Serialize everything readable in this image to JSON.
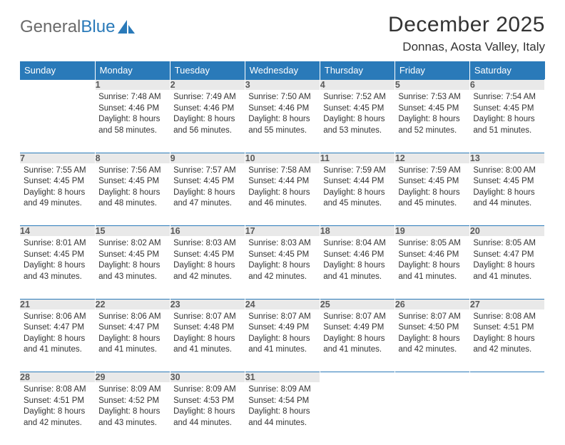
{
  "brand": {
    "part1": "General",
    "part2": "Blue"
  },
  "title": "December 2025",
  "location": "Donnas, Aosta Valley, Italy",
  "colors": {
    "header_bg": "#2a7ab9",
    "header_text": "#ffffff",
    "daynum_bg": "#e9e9e9",
    "daynum_text": "#5a5a5a",
    "body_text": "#333333",
    "rule": "#2a7ab9",
    "logo_gray": "#6a6a6a",
    "logo_blue": "#2a7ab9"
  },
  "columns": [
    "Sunday",
    "Monday",
    "Tuesday",
    "Wednesday",
    "Thursday",
    "Friday",
    "Saturday"
  ],
  "weeks": [
    [
      null,
      {
        "n": "1",
        "sr": "7:48 AM",
        "ss": "4:46 PM",
        "dl": "8 hours and 58 minutes."
      },
      {
        "n": "2",
        "sr": "7:49 AM",
        "ss": "4:46 PM",
        "dl": "8 hours and 56 minutes."
      },
      {
        "n": "3",
        "sr": "7:50 AM",
        "ss": "4:46 PM",
        "dl": "8 hours and 55 minutes."
      },
      {
        "n": "4",
        "sr": "7:52 AM",
        "ss": "4:45 PM",
        "dl": "8 hours and 53 minutes."
      },
      {
        "n": "5",
        "sr": "7:53 AM",
        "ss": "4:45 PM",
        "dl": "8 hours and 52 minutes."
      },
      {
        "n": "6",
        "sr": "7:54 AM",
        "ss": "4:45 PM",
        "dl": "8 hours and 51 minutes."
      }
    ],
    [
      {
        "n": "7",
        "sr": "7:55 AM",
        "ss": "4:45 PM",
        "dl": "8 hours and 49 minutes."
      },
      {
        "n": "8",
        "sr": "7:56 AM",
        "ss": "4:45 PM",
        "dl": "8 hours and 48 minutes."
      },
      {
        "n": "9",
        "sr": "7:57 AM",
        "ss": "4:45 PM",
        "dl": "8 hours and 47 minutes."
      },
      {
        "n": "10",
        "sr": "7:58 AM",
        "ss": "4:44 PM",
        "dl": "8 hours and 46 minutes."
      },
      {
        "n": "11",
        "sr": "7:59 AM",
        "ss": "4:44 PM",
        "dl": "8 hours and 45 minutes."
      },
      {
        "n": "12",
        "sr": "7:59 AM",
        "ss": "4:45 PM",
        "dl": "8 hours and 45 minutes."
      },
      {
        "n": "13",
        "sr": "8:00 AM",
        "ss": "4:45 PM",
        "dl": "8 hours and 44 minutes."
      }
    ],
    [
      {
        "n": "14",
        "sr": "8:01 AM",
        "ss": "4:45 PM",
        "dl": "8 hours and 43 minutes."
      },
      {
        "n": "15",
        "sr": "8:02 AM",
        "ss": "4:45 PM",
        "dl": "8 hours and 43 minutes."
      },
      {
        "n": "16",
        "sr": "8:03 AM",
        "ss": "4:45 PM",
        "dl": "8 hours and 42 minutes."
      },
      {
        "n": "17",
        "sr": "8:03 AM",
        "ss": "4:45 PM",
        "dl": "8 hours and 42 minutes."
      },
      {
        "n": "18",
        "sr": "8:04 AM",
        "ss": "4:46 PM",
        "dl": "8 hours and 41 minutes."
      },
      {
        "n": "19",
        "sr": "8:05 AM",
        "ss": "4:46 PM",
        "dl": "8 hours and 41 minutes."
      },
      {
        "n": "20",
        "sr": "8:05 AM",
        "ss": "4:47 PM",
        "dl": "8 hours and 41 minutes."
      }
    ],
    [
      {
        "n": "21",
        "sr": "8:06 AM",
        "ss": "4:47 PM",
        "dl": "8 hours and 41 minutes."
      },
      {
        "n": "22",
        "sr": "8:06 AM",
        "ss": "4:47 PM",
        "dl": "8 hours and 41 minutes."
      },
      {
        "n": "23",
        "sr": "8:07 AM",
        "ss": "4:48 PM",
        "dl": "8 hours and 41 minutes."
      },
      {
        "n": "24",
        "sr": "8:07 AM",
        "ss": "4:49 PM",
        "dl": "8 hours and 41 minutes."
      },
      {
        "n": "25",
        "sr": "8:07 AM",
        "ss": "4:49 PM",
        "dl": "8 hours and 41 minutes."
      },
      {
        "n": "26",
        "sr": "8:07 AM",
        "ss": "4:50 PM",
        "dl": "8 hours and 42 minutes."
      },
      {
        "n": "27",
        "sr": "8:08 AM",
        "ss": "4:51 PM",
        "dl": "8 hours and 42 minutes."
      }
    ],
    [
      {
        "n": "28",
        "sr": "8:08 AM",
        "ss": "4:51 PM",
        "dl": "8 hours and 42 minutes."
      },
      {
        "n": "29",
        "sr": "8:09 AM",
        "ss": "4:52 PM",
        "dl": "8 hours and 43 minutes."
      },
      {
        "n": "30",
        "sr": "8:09 AM",
        "ss": "4:53 PM",
        "dl": "8 hours and 44 minutes."
      },
      {
        "n": "31",
        "sr": "8:09 AM",
        "ss": "4:54 PM",
        "dl": "8 hours and 44 minutes."
      },
      null,
      null,
      null
    ]
  ],
  "labels": {
    "sunrise": "Sunrise:",
    "sunset": "Sunset:",
    "daylight": "Daylight:"
  }
}
